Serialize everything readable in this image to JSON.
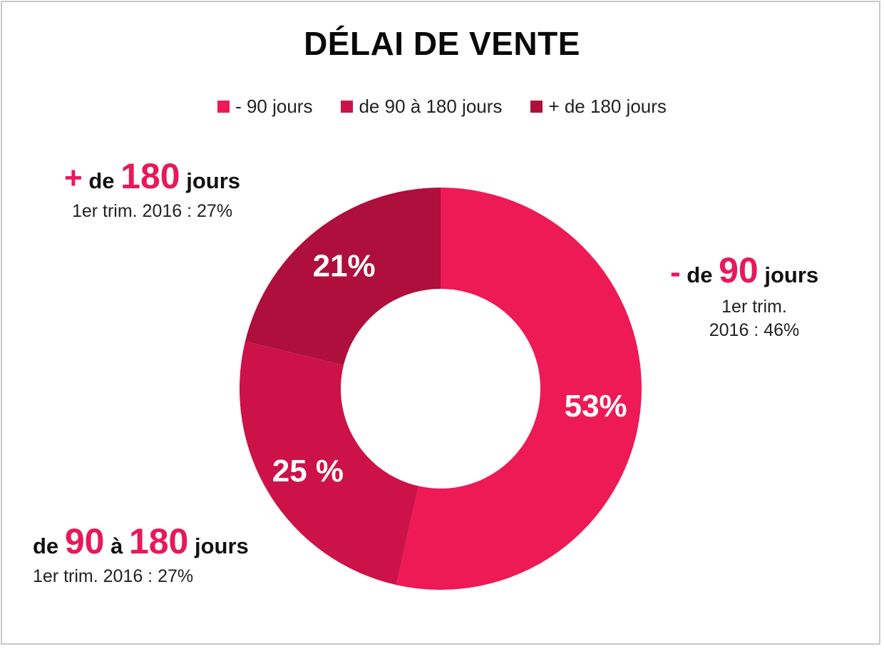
{
  "chart_data": {
    "type": "pie",
    "variant": "donut",
    "title": "DÉLAI DE VENTE",
    "categories": [
      "- 90 jours",
      "de 90 à 180 jours",
      "+ de 180 jours"
    ],
    "values": [
      53,
      25,
      21
    ],
    "data_labels": [
      "53%",
      "25 %",
      "21%"
    ],
    "colors": [
      "#ED1A55",
      "#CC1248",
      "#AE0F3C"
    ],
    "legend_position": "top"
  },
  "callouts": {
    "plus180": {
      "sign": "+",
      "word1": "de",
      "number": "180",
      "word2": "jours",
      "sub": "1er trim. 2016 : 27%"
    },
    "minus90": {
      "sign": "-",
      "word1": "de",
      "number": "90",
      "word2": "jours",
      "sub_line1": "1er trim.",
      "sub_line2": "2016 : 46%"
    },
    "mid": {
      "word1": "de",
      "number1": "90",
      "word2": "à",
      "number2": "180",
      "word3": "jours",
      "sub": "1er trim. 2016 : 27%"
    }
  },
  "accent_color": "#E8185A"
}
